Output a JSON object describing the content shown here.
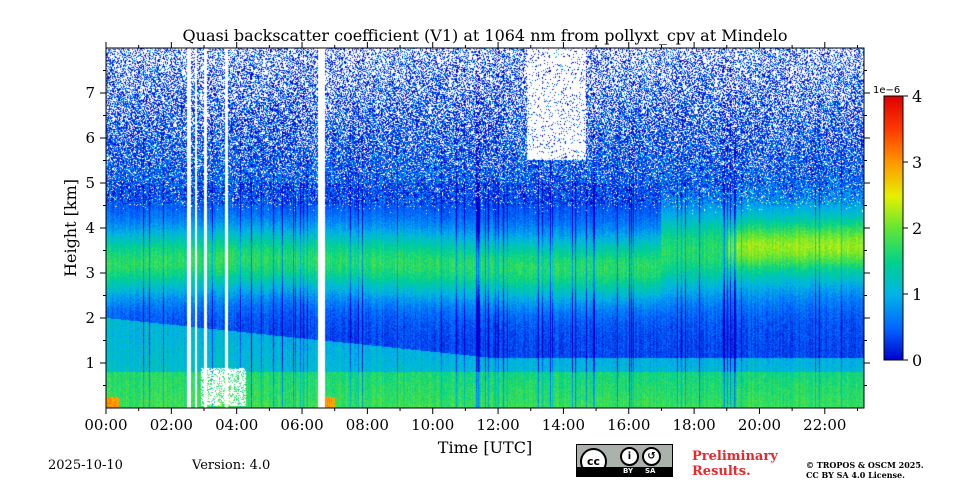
{
  "chart_data": {
    "type": "heatmap",
    "title": "Quasi backscatter coefficient (V1) at 1064 nm from pollyxt_cpv at Mindelo",
    "xlabel": "Time [UTC]",
    "ylabel": "Height [km]",
    "x_ticks": [
      "00:00",
      "02:00",
      "04:00",
      "06:00",
      "08:00",
      "10:00",
      "12:00",
      "14:00",
      "16:00",
      "18:00",
      "20:00",
      "22:00"
    ],
    "y_ticks": [
      "1",
      "2",
      "3",
      "4",
      "5",
      "6",
      "7"
    ],
    "xlim_hours": [
      0,
      23.2
    ],
    "ylim_km": [
      0,
      8
    ],
    "colorbar": {
      "min": 0,
      "max": 4,
      "ticks": [
        "0",
        "1",
        "2",
        "3",
        "4"
      ],
      "scale_label": "1e−6",
      "colormap": [
        "#0000cc",
        "#0066ff",
        "#00b4e6",
        "#00d28c",
        "#64e632",
        "#e6f000",
        "#ff9600",
        "#ff3c00",
        "#dc0000"
      ]
    },
    "layers": [
      {
        "feature": "elevated aerosol layer",
        "height_km": [
          2.3,
          4.2
        ],
        "value_approx": 1.8
      },
      {
        "feature": "boundary layer",
        "height_km": [
          0,
          1.2
        ],
        "value_approx": 1.5
      },
      {
        "feature": "clean free troposphere",
        "height_km": [
          5,
          8
        ],
        "value_approx": 0.2
      }
    ],
    "gaps_hours": [
      [
        2.48,
        2.6
      ],
      [
        2.72,
        2.8
      ],
      [
        3.0,
        3.1
      ],
      [
        3.65,
        3.72
      ],
      [
        6.5,
        6.7
      ]
    ],
    "grid": false
  },
  "footer": {
    "date": "2025-10-10",
    "version": "Version: 4.0",
    "preliminary_line1": "Preliminary",
    "preliminary_line2": "Results.",
    "copyright_line1": "© TROPOS & OSCM 2025.",
    "copyright_line2": "CC BY SA 4.0 License.",
    "cc_by": "BY",
    "cc_sa": "SA",
    "cc_mark": "cc"
  }
}
